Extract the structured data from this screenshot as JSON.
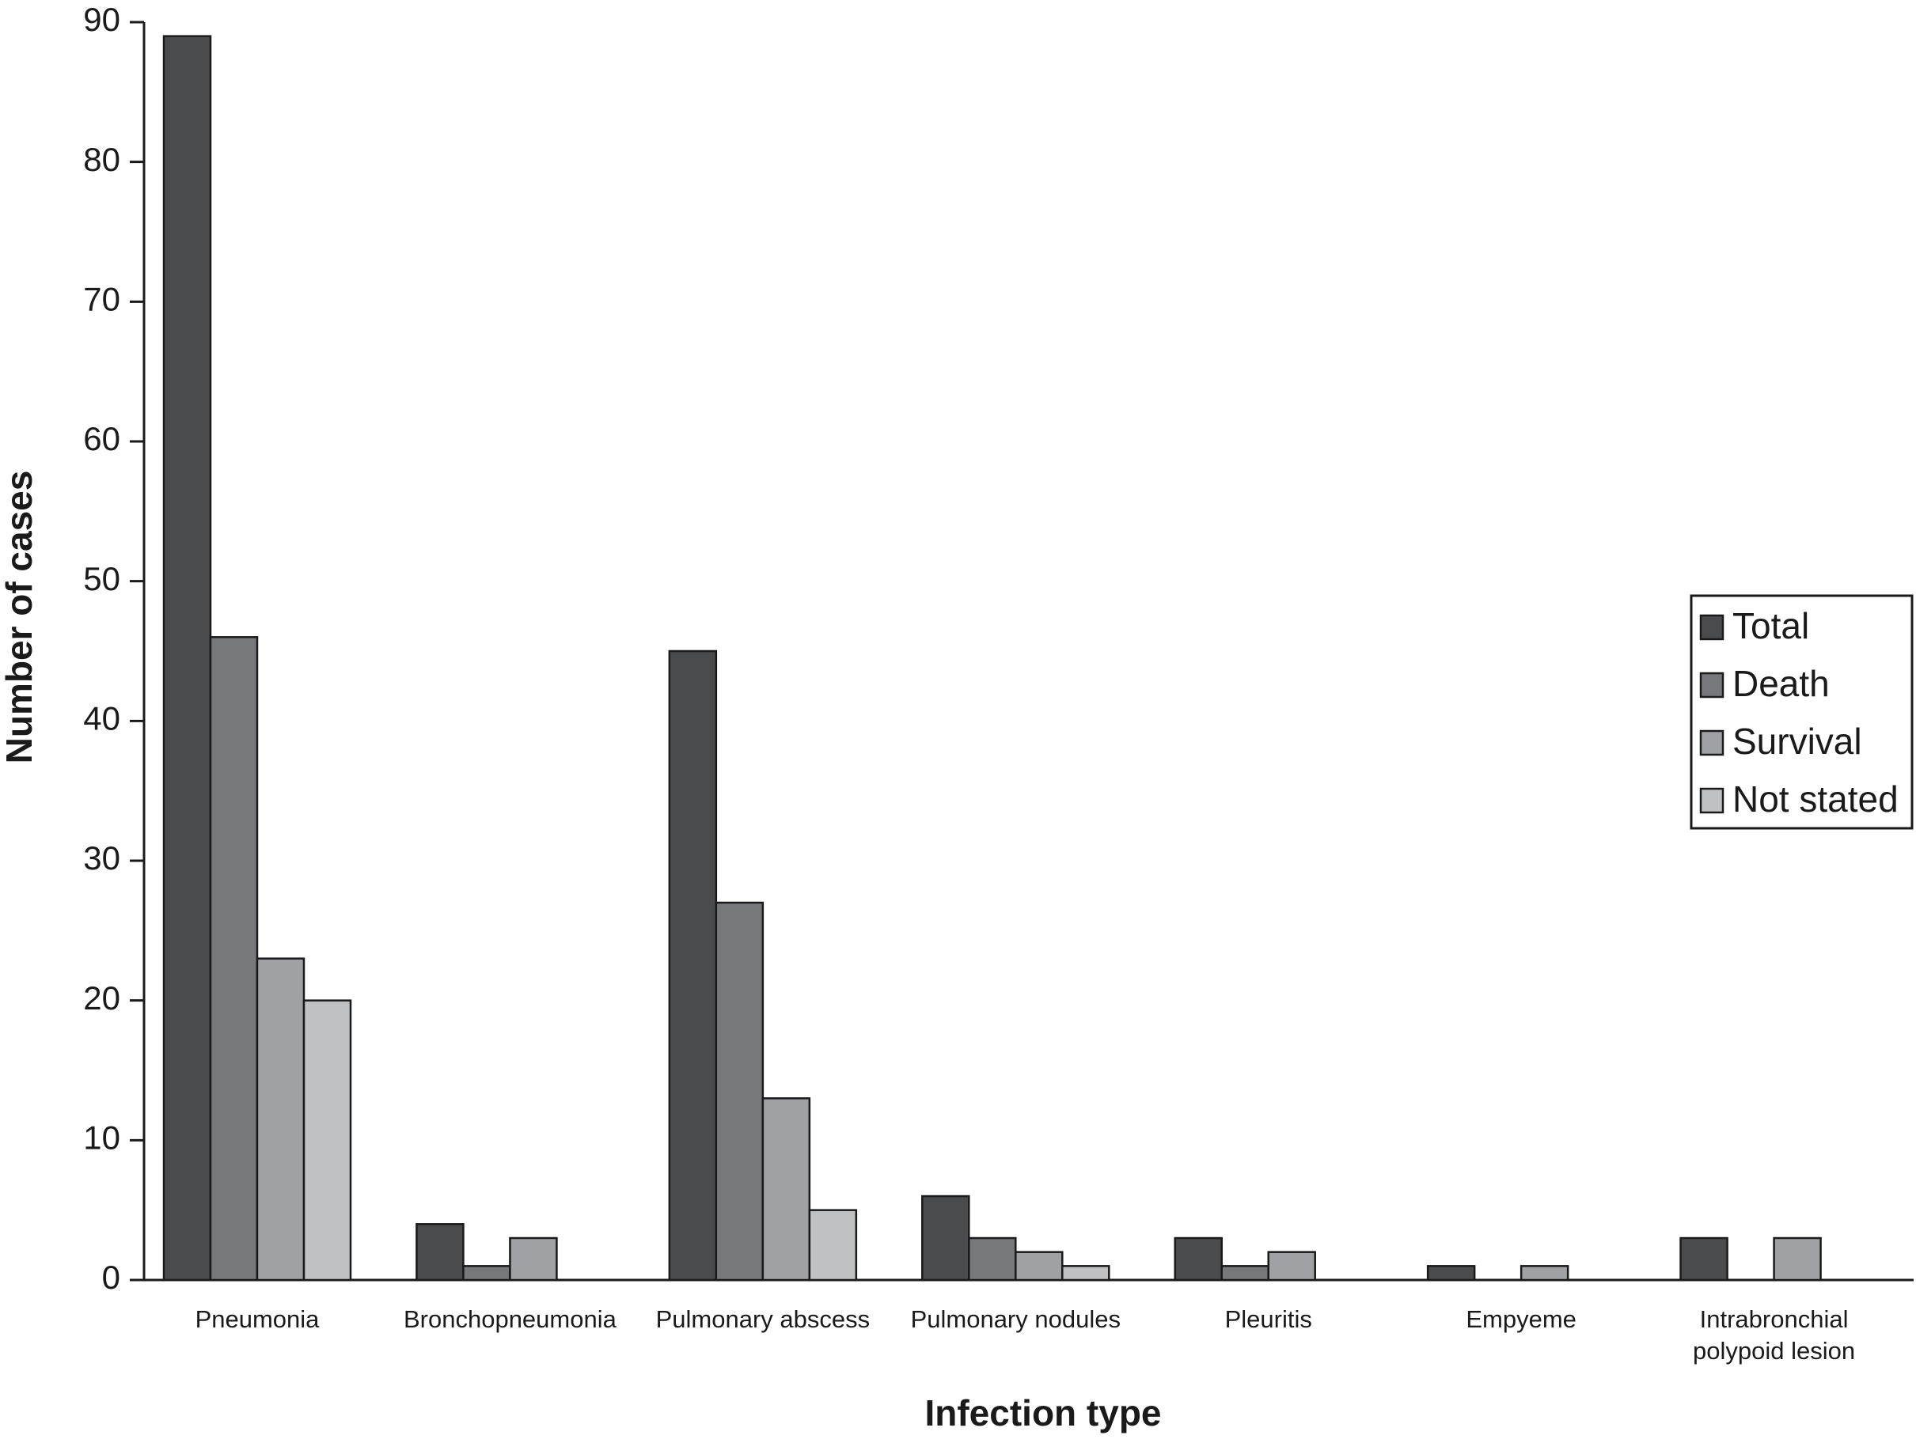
{
  "chart_data": {
    "type": "bar",
    "x_label": "Infection type",
    "y_label": "Number of cases",
    "categories": [
      "Pneumonia",
      "Bronchopneumonia",
      "Pulmonary abscess",
      "Pulmonary nodules",
      "Pleuritis",
      "Empyeme",
      "Intrabronchial polypoid lesion"
    ],
    "series": [
      {
        "name": "Total",
        "color": "#4a4b4d",
        "values": [
          89,
          4,
          45,
          6,
          3,
          1,
          3
        ]
      },
      {
        "name": "Death",
        "color": "#77787c",
        "values": [
          46,
          1,
          27,
          3,
          1,
          0,
          0
        ]
      },
      {
        "name": "Survival",
        "color": "#a0a1a5",
        "values": [
          23,
          3,
          13,
          2,
          2,
          1,
          3
        ]
      },
      {
        "name": "Not stated",
        "color": "#c0c1c3",
        "values": [
          20,
          0,
          5,
          1,
          0,
          0,
          0
        ]
      }
    ],
    "ylim": [
      0,
      90
    ],
    "yticks": [
      0,
      10,
      20,
      30,
      40,
      50,
      60,
      70,
      80,
      90
    ],
    "grid": false,
    "legend": "right"
  }
}
